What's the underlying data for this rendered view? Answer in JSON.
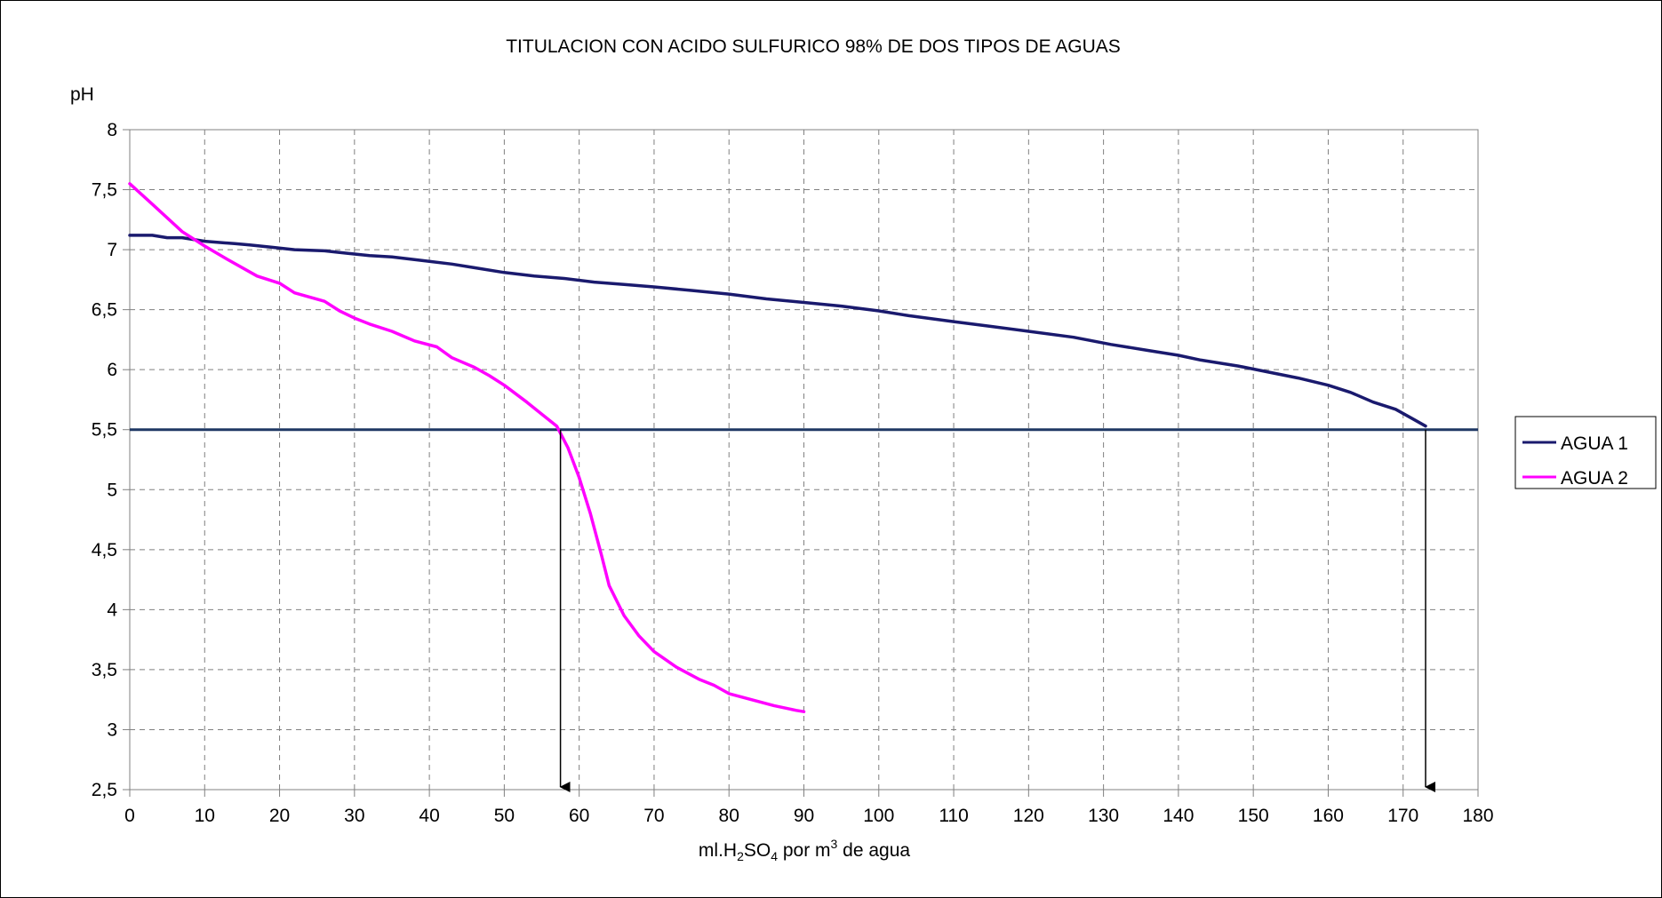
{
  "chart_data": {
    "type": "line",
    "title": "TITULACION CON ACIDO SULFURICO 98% DE DOS TIPOS DE AGUAS",
    "ylabel": "pH",
    "xlabel_parts": [
      "ml.H",
      "2",
      "SO",
      "4",
      " por m",
      "3",
      " de agua"
    ],
    "xlim": [
      0,
      180
    ],
    "ylim": [
      2.5,
      8
    ],
    "x_ticks": [
      "0",
      "10",
      "20",
      "30",
      "40",
      "50",
      "60",
      "70",
      "80",
      "90",
      "100",
      "110",
      "120",
      "130",
      "140",
      "150",
      "160",
      "170",
      "180"
    ],
    "y_ticks": [
      "2,5",
      "3",
      "3,5",
      "4",
      "4,5",
      "5",
      "5,5",
      "6",
      "6,5",
      "7",
      "7,5",
      "8"
    ],
    "grid": true,
    "legend_position": "right",
    "reference_line": {
      "y": 5.5,
      "color": "#1f3864"
    },
    "arrows": [
      {
        "x": 57.5,
        "y_from": 5.5,
        "y_to": 2.5
      },
      {
        "x": 173,
        "y_from": 5.5,
        "y_to": 2.5
      }
    ],
    "series": [
      {
        "name": "AGUA 1",
        "color": "#1a1a6e",
        "x": [
          0,
          3,
          5,
          7,
          10,
          14,
          16,
          19,
          22,
          26,
          29,
          32,
          35,
          39,
          43,
          46,
          50,
          54,
          58,
          62,
          66,
          70,
          75,
          80,
          85,
          90,
          95,
          100,
          104,
          110,
          115,
          120,
          126,
          131,
          136,
          140,
          143,
          148,
          152,
          156,
          160,
          163,
          166,
          169,
          171,
          173
        ],
        "y": [
          7.12,
          7.12,
          7.1,
          7.1,
          7.07,
          7.05,
          7.04,
          7.02,
          7.0,
          6.99,
          6.97,
          6.95,
          6.94,
          6.91,
          6.88,
          6.85,
          6.81,
          6.78,
          6.76,
          6.73,
          6.71,
          6.69,
          6.66,
          6.63,
          6.59,
          6.56,
          6.53,
          6.49,
          6.45,
          6.4,
          6.36,
          6.32,
          6.27,
          6.21,
          6.16,
          6.12,
          6.08,
          6.03,
          5.98,
          5.93,
          5.87,
          5.81,
          5.73,
          5.67,
          5.6,
          5.53
        ]
      },
      {
        "name": "AGUA 2",
        "color": "#ff00ff",
        "x": [
          0,
          3,
          7,
          10,
          13,
          17,
          20,
          22,
          26,
          28,
          30,
          32,
          35,
          38,
          41,
          43,
          46,
          48,
          50,
          53,
          55,
          57,
          58.5,
          60,
          61.5,
          63,
          64,
          66,
          68,
          70,
          73,
          76,
          78,
          80,
          83,
          86,
          89,
          90
        ],
        "y": [
          7.55,
          7.38,
          7.15,
          7.03,
          6.92,
          6.78,
          6.72,
          6.64,
          6.57,
          6.49,
          6.43,
          6.38,
          6.32,
          6.24,
          6.19,
          6.1,
          6.02,
          5.95,
          5.87,
          5.73,
          5.63,
          5.53,
          5.35,
          5.1,
          4.8,
          4.45,
          4.2,
          3.95,
          3.78,
          3.65,
          3.52,
          3.42,
          3.37,
          3.3,
          3.25,
          3.2,
          3.16,
          3.15
        ]
      }
    ]
  }
}
